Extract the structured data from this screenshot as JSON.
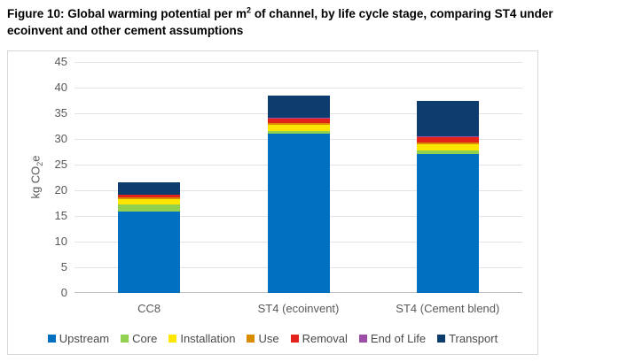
{
  "figure": {
    "title_line1_prefix": "Figure 10: Global warming potential per m",
    "title_superscript": "2",
    "title_line1_suffix": " of channel, by life cycle stage, comparing ST4 under",
    "title_line2": "ecoinvent and other cement assumptions"
  },
  "chart_data": {
    "type": "bar",
    "stacked": true,
    "ylabel_prefix": "kg CO",
    "ylabel_sub": "2",
    "ylabel_suffix": "e",
    "ylim": [
      0,
      45
    ],
    "yticks": [
      0,
      5,
      10,
      15,
      20,
      25,
      30,
      35,
      40,
      45
    ],
    "grid": "horizontal",
    "legend_position": "bottom",
    "categories": [
      "CC8",
      "ST4 (ecoinvent)",
      "ST4 (Cement blend)"
    ],
    "series": [
      {
        "name": "Upstream",
        "color": "#0070c0",
        "values": [
          15.9,
          31.0,
          27.1
        ]
      },
      {
        "name": "Core",
        "color": "#92d050",
        "values": [
          1.3,
          0.5,
          0.7
        ]
      },
      {
        "name": "Installation",
        "color": "#ffe600",
        "values": [
          1.1,
          1.2,
          1.2
        ]
      },
      {
        "name": "Use",
        "color": "#d98c00",
        "values": [
          0.3,
          0.35,
          0.4
        ]
      },
      {
        "name": "Removal",
        "color": "#e2231a",
        "values": [
          0.5,
          1.0,
          1.0
        ]
      },
      {
        "name": "End of Life",
        "color": "#9e4fa5",
        "values": [
          0.1,
          0.15,
          0.1
        ]
      },
      {
        "name": "Transport",
        "color": "#0d3d6e",
        "values": [
          2.3,
          4.3,
          6.9
        ]
      }
    ],
    "totals": [
      21.5,
      38.5,
      37.4
    ]
  },
  "colors": {
    "grid": "#e3e3e3",
    "axis": "#bfbfbf",
    "border": "#d9d9d9",
    "tick_text": "#595959",
    "legend_text": "#4a4a4a"
  }
}
